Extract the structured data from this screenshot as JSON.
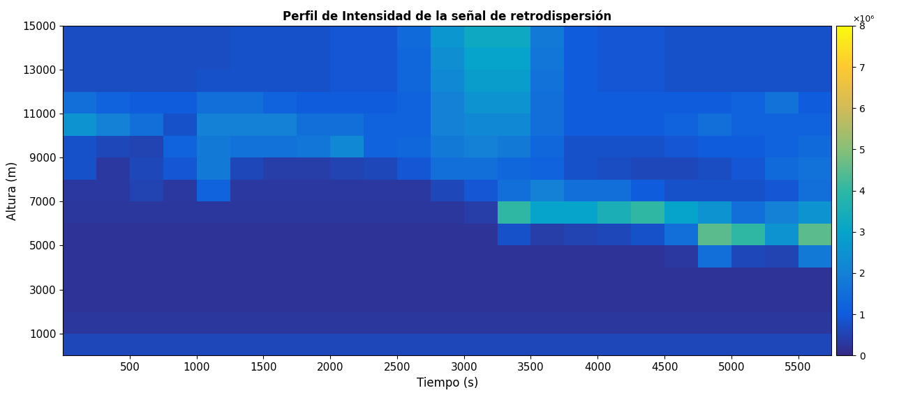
{
  "chart_data": {
    "type": "heatmap",
    "title": "Perfil de Intensidad de la señal de retrodispersión",
    "x_label": "Tiempo (s)",
    "y_label": "Altura (m)",
    "xlim": [
      0,
      5750
    ],
    "ylim": [
      0,
      15000
    ],
    "xticks": [
      500,
      1000,
      1500,
      2000,
      2500,
      3000,
      3500,
      4000,
      4500,
      5000,
      5500
    ],
    "yticks": [
      1000,
      3000,
      5000,
      7000,
      9000,
      11000,
      13000,
      15000
    ],
    "x_edges": [
      0,
      250,
      500,
      750,
      1000,
      1250,
      1500,
      1750,
      2000,
      2250,
      2500,
      2750,
      3000,
      3250,
      3500,
      3750,
      4000,
      4250,
      4500,
      4750,
      5000,
      5250,
      5500,
      5750
    ],
    "y_edges": [
      0,
      1000,
      2000,
      3000,
      4000,
      5000,
      6000,
      7000,
      8000,
      9000,
      10000,
      11000,
      12000,
      13000,
      14000,
      15000
    ],
    "cells": [
      [
        0.6,
        0.6,
        0.6,
        0.6,
        0.6,
        0.6,
        0.6,
        0.6,
        0.6,
        0.6,
        0.6,
        0.6,
        0.6,
        0.6,
        0.6,
        0.6,
        0.6,
        0.6,
        0.6,
        0.6,
        0.6,
        0.6,
        0.6
      ],
      [
        0.25,
        0.25,
        0.25,
        0.25,
        0.25,
        0.25,
        0.25,
        0.25,
        0.25,
        0.25,
        0.25,
        0.25,
        0.25,
        0.25,
        0.25,
        0.25,
        0.25,
        0.25,
        0.25,
        0.25,
        0.25,
        0.25,
        0.25
      ],
      [
        0.2,
        0.2,
        0.2,
        0.2,
        0.2,
        0.2,
        0.2,
        0.2,
        0.2,
        0.2,
        0.2,
        0.2,
        0.2,
        0.2,
        0.2,
        0.2,
        0.2,
        0.2,
        0.2,
        0.2,
        0.2,
        0.2,
        0.2
      ],
      [
        0.2,
        0.2,
        0.2,
        0.2,
        0.2,
        0.2,
        0.2,
        0.2,
        0.2,
        0.2,
        0.2,
        0.2,
        0.2,
        0.2,
        0.2,
        0.2,
        0.2,
        0.2,
        0.2,
        0.2,
        0.2,
        0.2,
        0.2
      ],
      [
        0.2,
        0.2,
        0.2,
        0.2,
        0.2,
        0.2,
        0.2,
        0.2,
        0.2,
        0.2,
        0.2,
        0.2,
        0.2,
        0.2,
        0.2,
        0.2,
        0.2,
        0.2,
        0.3,
        1.5,
        0.6,
        0.5,
        1.8
      ],
      [
        0.2,
        0.2,
        0.2,
        0.2,
        0.2,
        0.2,
        0.2,
        0.2,
        0.2,
        0.2,
        0.2,
        0.2,
        0.2,
        0.8,
        0.4,
        0.5,
        0.6,
        0.8,
        1.5,
        4.5,
        4,
        2.5,
        4.5
      ],
      [
        0.25,
        0.25,
        0.25,
        0.25,
        0.25,
        0.25,
        0.25,
        0.25,
        0.25,
        0.25,
        0.25,
        0.25,
        0.4,
        4,
        3,
        3,
        3.5,
        4,
        3,
        2.5,
        1.5,
        2,
        2.5
      ],
      [
        0.3,
        0.3,
        0.5,
        0.3,
        1.2,
        0.3,
        0.3,
        0.3,
        0.3,
        0.3,
        0.3,
        0.6,
        0.9,
        1.5,
        2,
        1.5,
        1.5,
        1,
        0.8,
        0.8,
        0.8,
        0.9,
        1.5
      ],
      [
        0.8,
        0.3,
        0.6,
        0.9,
        1.8,
        0.6,
        0.4,
        0.4,
        0.5,
        0.6,
        0.9,
        1.5,
        1.5,
        1.3,
        1.2,
        0.8,
        0.7,
        0.6,
        0.6,
        0.7,
        0.9,
        1.4,
        1.6
      ],
      [
        0.8,
        0.6,
        0.5,
        1.2,
        1.8,
        1.6,
        1.6,
        1.7,
        2.2,
        1.2,
        1.3,
        1.8,
        2,
        1.8,
        1.3,
        0.8,
        0.8,
        0.8,
        0.9,
        1,
        1,
        1.2,
        1.4
      ],
      [
        2.5,
        2,
        1.5,
        0.8,
        2,
        2,
        2,
        1.5,
        1.5,
        1.2,
        1.2,
        2,
        2.2,
        2.2,
        1.5,
        1,
        1,
        1,
        1.2,
        1.5,
        1.2,
        1.2,
        1.2
      ],
      [
        1.5,
        1.2,
        1,
        1,
        1.5,
        1.5,
        1.2,
        1,
        1,
        1,
        1.2,
        2,
        2.5,
        2.5,
        1.5,
        1,
        1,
        1,
        1,
        1,
        1.2,
        1.6,
        1
      ],
      [
        0.7,
        0.7,
        0.7,
        0.7,
        0.8,
        0.8,
        0.8,
        0.8,
        0.9,
        0.9,
        1.3,
        2.2,
        2.8,
        2.8,
        1.6,
        1,
        0.9,
        0.9,
        0.8,
        0.8,
        0.8,
        0.8,
        0.8
      ],
      [
        0.7,
        0.7,
        0.7,
        0.7,
        0.7,
        0.8,
        0.8,
        0.8,
        0.9,
        0.9,
        1.3,
        2.4,
        3,
        3,
        1.7,
        1,
        0.9,
        0.9,
        0.8,
        0.8,
        0.8,
        0.8,
        0.8
      ],
      [
        0.7,
        0.7,
        0.7,
        0.7,
        0.7,
        0.8,
        0.8,
        0.8,
        0.9,
        0.9,
        1.4,
        2.6,
        3.2,
        3.2,
        1.8,
        1,
        0.9,
        0.9,
        0.8,
        0.8,
        0.8,
        0.8,
        0.8
      ]
    ],
    "colorbar_range": [
      0,
      8
    ],
    "colorbar_ticks": [
      0,
      1,
      2,
      3,
      4,
      5,
      6,
      7,
      8
    ],
    "colorbar_multiplier": "×10⁶"
  }
}
